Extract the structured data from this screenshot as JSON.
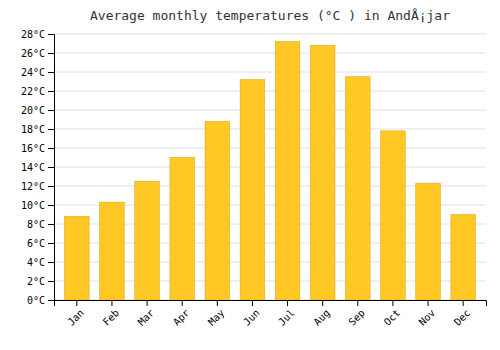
{
  "chart_data": {
    "type": "bar",
    "title": "Average monthly temperatures (°C ) in AndÅ¡jar",
    "categories": [
      "Jan",
      "Feb",
      "Mar",
      "Apr",
      "May",
      "Jun",
      "Jul",
      "Aug",
      "Sep",
      "Oct",
      "Nov",
      "Dec"
    ],
    "values": [
      8.8,
      10.3,
      12.5,
      15.0,
      18.8,
      23.2,
      27.2,
      26.8,
      23.5,
      17.8,
      12.3,
      9.0
    ],
    "color": "#FFC825",
    "ylim": [
      0,
      28
    ],
    "yticks": [
      {
        "value": 0,
        "label": "0°C"
      },
      {
        "value": 2,
        "label": "2°C"
      },
      {
        "value": 4,
        "label": "4°C"
      },
      {
        "value": 6,
        "label": "6°C"
      },
      {
        "value": 8,
        "label": "8°C"
      },
      {
        "value": 10,
        "label": "10°C"
      },
      {
        "value": 12,
        "label": "12°C"
      },
      {
        "value": 14,
        "label": "14°C"
      },
      {
        "value": 16,
        "label": "16°C"
      },
      {
        "value": 18,
        "label": "18°C"
      },
      {
        "value": 20,
        "label": "20°C"
      },
      {
        "value": 22,
        "label": "22°C"
      },
      {
        "value": 24,
        "label": "24°C"
      },
      {
        "value": 26,
        "label": "26°C"
      },
      {
        "value": 28,
        "label": "28°C"
      }
    ],
    "grid": true
  }
}
